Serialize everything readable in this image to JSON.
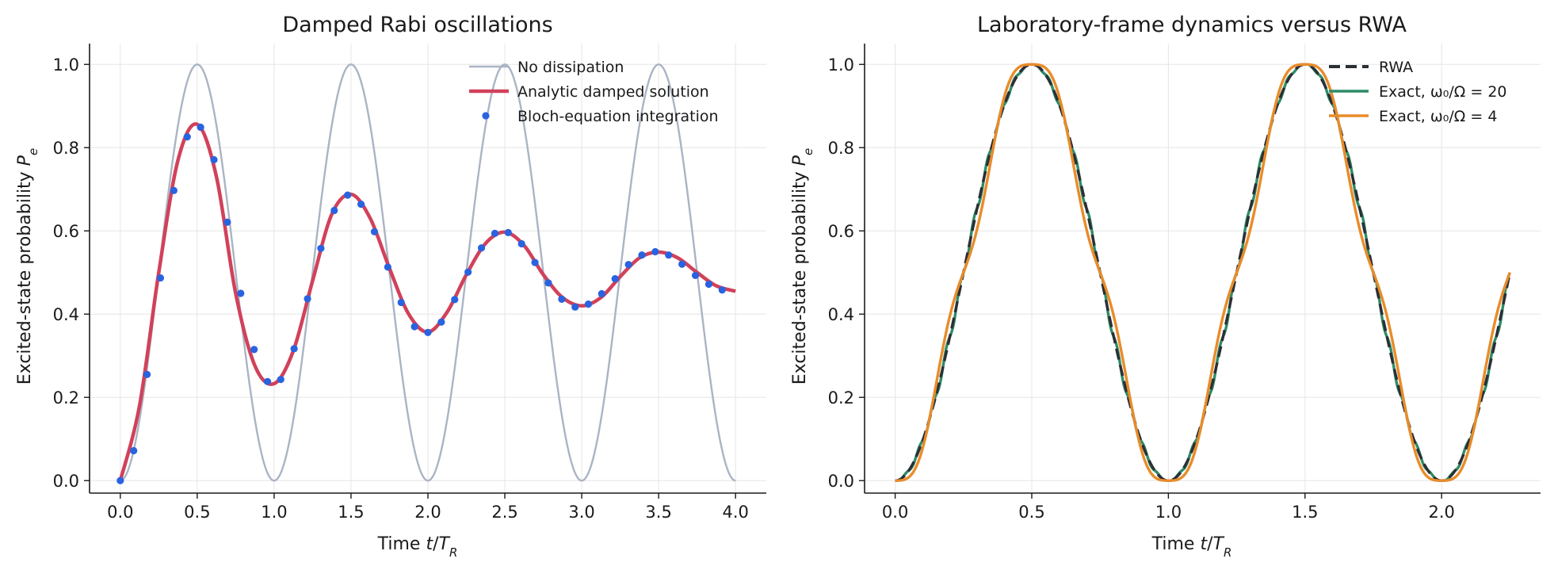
{
  "chart_data": [
    {
      "type": "line",
      "title": "Damped Rabi oscillations",
      "xlabel": "Time t/T_R",
      "ylabel": "Excited-state probability P_e",
      "xlim": [
        -0.2,
        4.2
      ],
      "ylim": [
        -0.03,
        1.05
      ],
      "x_ticks": [
        "0.0",
        "0.5",
        "1.0",
        "1.5",
        "2.0",
        "2.5",
        "3.0",
        "3.5",
        "4.0"
      ],
      "y_ticks": [
        "0.0",
        "0.2",
        "0.4",
        "0.6",
        "0.8",
        "1.0"
      ],
      "grid": true,
      "legend_position": "top-right",
      "series": [
        {
          "name": "No dissipation",
          "style": "line",
          "color": "#aab4c4",
          "x": [
            0,
            0.125,
            0.25,
            0.375,
            0.5,
            0.625,
            0.75,
            0.875,
            1.0,
            1.125,
            1.25,
            1.375,
            1.5,
            1.625,
            1.75,
            1.875,
            2.0,
            2.125,
            2.25,
            2.375,
            2.5,
            2.625,
            2.75,
            2.875,
            3.0,
            3.125,
            3.25,
            3.375,
            3.5,
            3.625,
            3.75,
            3.875,
            4.0
          ],
          "y": [
            0.0,
            0.146,
            0.5,
            0.854,
            1.0,
            0.854,
            0.5,
            0.146,
            0.0,
            0.146,
            0.5,
            0.854,
            1.0,
            0.854,
            0.5,
            0.146,
            0.0,
            0.146,
            0.5,
            0.854,
            1.0,
            0.854,
            0.5,
            0.146,
            0.0,
            0.146,
            0.5,
            0.854,
            1.0,
            0.854,
            0.5,
            0.146,
            0.0
          ]
        },
        {
          "name": "Analytic damped solution",
          "style": "line",
          "color": "#d1415a",
          "x": [
            0,
            0.125,
            0.25,
            0.375,
            0.5,
            0.625,
            0.75,
            0.875,
            1.0,
            1.125,
            1.25,
            1.375,
            1.5,
            1.625,
            1.75,
            1.875,
            2.0,
            2.125,
            2.25,
            2.375,
            2.5,
            2.625,
            2.75,
            2.875,
            3.0,
            3.125,
            3.25,
            3.375,
            3.5,
            3.625,
            3.75,
            3.875,
            4.0
          ],
          "y": [
            0.0,
            0.18,
            0.5,
            0.77,
            0.856,
            0.73,
            0.45,
            0.276,
            0.233,
            0.312,
            0.48,
            0.64,
            0.688,
            0.63,
            0.51,
            0.4,
            0.357,
            0.405,
            0.495,
            0.57,
            0.597,
            0.565,
            0.495,
            0.44,
            0.42,
            0.44,
            0.49,
            0.535,
            0.549,
            0.535,
            0.5,
            0.468,
            0.455
          ]
        },
        {
          "name": "Bloch-equation integration",
          "style": "markers",
          "color": "#2a63e0",
          "x": [
            0.0,
            0.087,
            0.174,
            0.261,
            0.348,
            0.435,
            0.522,
            0.609,
            0.696,
            0.783,
            0.87,
            0.957,
            1.043,
            1.13,
            1.217,
            1.304,
            1.391,
            1.478,
            1.565,
            1.652,
            1.739,
            1.826,
            1.913,
            2.0,
            2.087,
            2.174,
            2.261,
            2.348,
            2.435,
            2.522,
            2.609,
            2.696,
            2.783,
            2.87,
            2.957,
            3.043,
            3.13,
            3.217,
            3.304,
            3.391,
            3.478,
            3.565,
            3.652,
            3.739,
            3.826,
            3.913
          ],
          "y": [
            0.0,
            0.072,
            0.255,
            0.487,
            0.697,
            0.826,
            0.849,
            0.771,
            0.621,
            0.45,
            0.315,
            0.238,
            0.243,
            0.317,
            0.437,
            0.558,
            0.649,
            0.686,
            0.664,
            0.598,
            0.513,
            0.428,
            0.37,
            0.356,
            0.381,
            0.435,
            0.501,
            0.559,
            0.594,
            0.596,
            0.569,
            0.524,
            0.475,
            0.436,
            0.417,
            0.424,
            0.449,
            0.485,
            0.519,
            0.542,
            0.55,
            0.542,
            0.52,
            0.493,
            0.472,
            0.458
          ]
        }
      ]
    },
    {
      "type": "line",
      "title": "Laboratory-frame dynamics versus RWA",
      "xlabel": "Time t/T_R",
      "ylabel": "Excited-state probability P_e",
      "xlim": [
        -0.112,
        2.362
      ],
      "ylim": [
        -0.03,
        1.05
      ],
      "x_ticks": [
        "0.0",
        "0.5",
        "1.0",
        "1.5",
        "2.0"
      ],
      "y_ticks": [
        "0.0",
        "0.2",
        "0.4",
        "0.6",
        "0.8",
        "1.0"
      ],
      "grid": true,
      "legend_position": "top-right",
      "series": [
        {
          "name": "RWA",
          "style": "dashed",
          "color": "#2b2f36",
          "x_range": [
            0,
            2.25
          ],
          "function": "sin^2(pi t)"
        },
        {
          "name": "Exact, ω₀/Ω = 20",
          "style": "line",
          "color": "#2e8b66",
          "x_range": [
            0,
            2.25
          ],
          "function": "sin^2(pi t) with small fast ripple",
          "ripple_ratio": 20
        },
        {
          "name": "Exact, ω₀/Ω = 4",
          "style": "line",
          "color": "#e88c2a",
          "x_range": [
            0,
            2.25
          ],
          "function": "sin^2(pi t) with visible step-like ripple",
          "ripple_ratio": 4
        }
      ]
    }
  ]
}
